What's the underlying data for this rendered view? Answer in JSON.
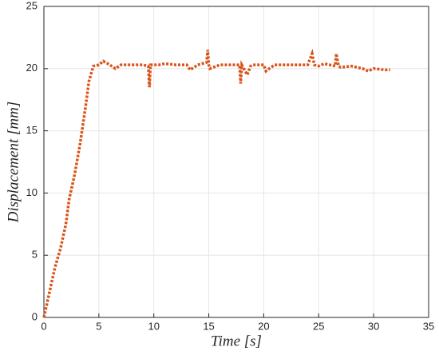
{
  "chart_data": {
    "type": "line",
    "xlabel": "Time [s]",
    "ylabel": "Displacement [mm]",
    "x": [
      0,
      0.5,
      1,
      1.5,
      2,
      2.3,
      2.8,
      3.3,
      3.8,
      4.1,
      4.5,
      5,
      5.4,
      6,
      6.5,
      7,
      8,
      9,
      9.5,
      9.6,
      9.7,
      10.5,
      11,
      12,
      13,
      13.3,
      14,
      14.8,
      14.9,
      15,
      15.1,
      16,
      17,
      17.8,
      17.9,
      18,
      18.5,
      18.8,
      19,
      20,
      20.2,
      20.5,
      21,
      22,
      23,
      24,
      24.4,
      24.6,
      25,
      25.5,
      26,
      26.5,
      26.6,
      26.8,
      27,
      28,
      29,
      29.5,
      30,
      31,
      31.5
    ],
    "series": [
      {
        "color": "#d95319",
        "values": [
          0,
          2,
          4,
          5.5,
          7.5,
          9.5,
          11.5,
          14,
          17,
          19,
          20.2,
          20.3,
          20.6,
          20.3,
          20,
          20.3,
          20.3,
          20.3,
          20.2,
          18.5,
          20.3,
          20.3,
          20.4,
          20.3,
          20.3,
          19.9,
          20.3,
          20.5,
          21.5,
          20.3,
          20,
          20.3,
          20.3,
          20.3,
          18.8,
          20.3,
          19.5,
          20.2,
          20.3,
          20.3,
          19.8,
          20,
          20.3,
          20.3,
          20.3,
          20.3,
          21.2,
          20.3,
          20.2,
          20.4,
          20.3,
          20.2,
          21.2,
          20.2,
          20.1,
          20.2,
          20,
          19.8,
          20,
          19.9,
          19.9
        ]
      }
    ],
    "xlim": [
      0,
      35
    ],
    "xticks": [
      0,
      5,
      10,
      15,
      20,
      25,
      30,
      35
    ],
    "ylim": [
      0,
      25
    ],
    "yticks": [
      0,
      5,
      10,
      15,
      20,
      25
    ],
    "grid": true
  }
}
